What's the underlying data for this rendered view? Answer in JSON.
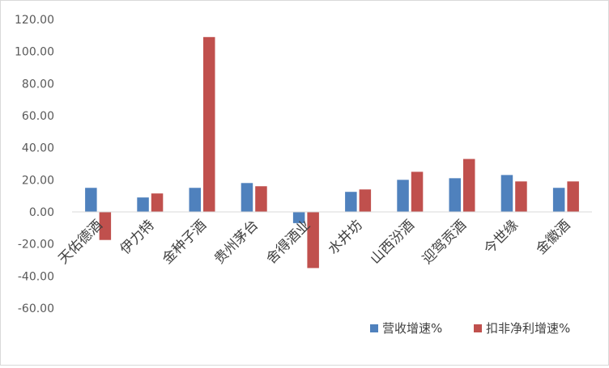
{
  "chart_data": {
    "type": "bar",
    "categories": [
      "天佑德酒",
      "伊力特",
      "金种子酒",
      "贵州茅台",
      "舍得酒业",
      "水井坊",
      "山西汾酒",
      "迎驾贡酒",
      "今世缘",
      "金徽酒"
    ],
    "series": [
      {
        "name": "营收增速%",
        "color": "#4f81bd",
        "values": [
          15,
          9,
          15,
          18,
          -7,
          12.5,
          20,
          21,
          23,
          15
        ]
      },
      {
        "name": "扣非净利增速%",
        "color": "#c0504d",
        "values": [
          -17.5,
          11.5,
          109,
          16,
          -35,
          14,
          25,
          33,
          19,
          19
        ]
      }
    ],
    "ylim": [
      -60,
      120
    ],
    "yticks": [
      "120.00",
      "100.00",
      "80.00",
      "60.00",
      "40.00",
      "20.00",
      "0.00",
      "-20.00",
      "-40.00",
      "-60.00"
    ],
    "ytick_values": [
      120,
      100,
      80,
      60,
      40,
      20,
      0,
      -20,
      -40,
      -60
    ],
    "grid": false,
    "legend_position": "bottom-right"
  }
}
